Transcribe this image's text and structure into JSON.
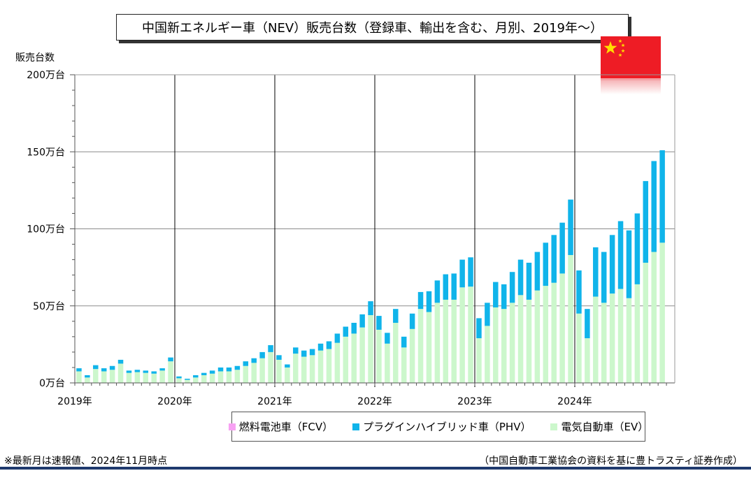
{
  "title": "中国新エネルギー車（NEV）販売台数（登録車、輸出を含む、月別、2019年～）",
  "notes": {
    "left": "※最新月は速報値、2024年11月時点",
    "right": "（中国自動車工業協会の資料を基に豊トラスティ証券作成）"
  },
  "colors": {
    "fcv": "#f7a1f3",
    "phv": "#10b4ea",
    "ev": "#ccf7cc"
  },
  "chart_data": {
    "type": "bar",
    "stacked": true,
    "ylabel": "販売台数",
    "ylim": [
      0,
      2000000
    ],
    "yticks": [
      {
        "value": 0,
        "label": "0万台"
      },
      {
        "value": 500000,
        "label": "50万台"
      },
      {
        "value": 1000000,
        "label": "100万台"
      },
      {
        "value": 1500000,
        "label": "150万台"
      },
      {
        "value": 2000000,
        "label": "200万台"
      }
    ],
    "year_labels": [
      "2019年",
      "2020年",
      "2021年",
      "2022年",
      "2023年",
      "2024年"
    ],
    "legend": [
      "燃料電池車（FCV）",
      "プラグインハイブリッド車（PHV）",
      "電気自動車（EV）"
    ],
    "series": [
      {
        "name": "燃料電池車（FCV）",
        "key": "fcv",
        "values": [
          0,
          0,
          0,
          0,
          0,
          0,
          0,
          0,
          0,
          0,
          0,
          0,
          0,
          0,
          0,
          0,
          0,
          0,
          0,
          0,
          0,
          0,
          0,
          0,
          0,
          0,
          0,
          0,
          0,
          0,
          0,
          0,
          0,
          0,
          0,
          0,
          0,
          0,
          0,
          0,
          0,
          0,
          0,
          0,
          0,
          0,
          0,
          0,
          0,
          0,
          0,
          0,
          0,
          0,
          0,
          0,
          0,
          0,
          0,
          0,
          0,
          0,
          0,
          0,
          0,
          0,
          0,
          0,
          0,
          0,
          0
        ]
      },
      {
        "name": "プラグインハイブリッド車（PHV）",
        "key": "phv",
        "values": [
          20000,
          15000,
          25000,
          20000,
          25000,
          25000,
          15000,
          15000,
          15000,
          15000,
          15000,
          25000,
          12000,
          7000,
          15000,
          15000,
          20000,
          25000,
          25000,
          25000,
          30000,
          30000,
          40000,
          45000,
          30000,
          20000,
          40000,
          40000,
          40000,
          45000,
          50000,
          60000,
          65000,
          70000,
          85000,
          90000,
          90000,
          70000,
          90000,
          70000,
          100000,
          110000,
          135000,
          145000,
          165000,
          170000,
          180000,
          190000,
          130000,
          150000,
          165000,
          160000,
          200000,
          230000,
          240000,
          250000,
          280000,
          310000,
          330000,
          360000,
          280000,
          190000,
          320000,
          330000,
          380000,
          440000,
          440000,
          460000,
          530000,
          590000,
          600000
        ]
      },
      {
        "name": "電気自動車（EV）",
        "key": "ev",
        "values": [
          75000,
          35000,
          90000,
          75000,
          85000,
          125000,
          65000,
          70000,
          65000,
          60000,
          80000,
          140000,
          30000,
          20000,
          35000,
          50000,
          60000,
          75000,
          75000,
          85000,
          110000,
          130000,
          160000,
          200000,
          150000,
          100000,
          190000,
          170000,
          180000,
          210000,
          220000,
          260000,
          300000,
          320000,
          360000,
          440000,
          345000,
          255000,
          390000,
          230000,
          350000,
          480000,
          460000,
          520000,
          540000,
          540000,
          620000,
          625000,
          290000,
          370000,
          490000,
          480000,
          520000,
          570000,
          540000,
          600000,
          630000,
          650000,
          710000,
          830000,
          450000,
          290000,
          560000,
          520000,
          580000,
          610000,
          550000,
          640000,
          780000,
          850000,
          910000
        ]
      }
    ]
  }
}
